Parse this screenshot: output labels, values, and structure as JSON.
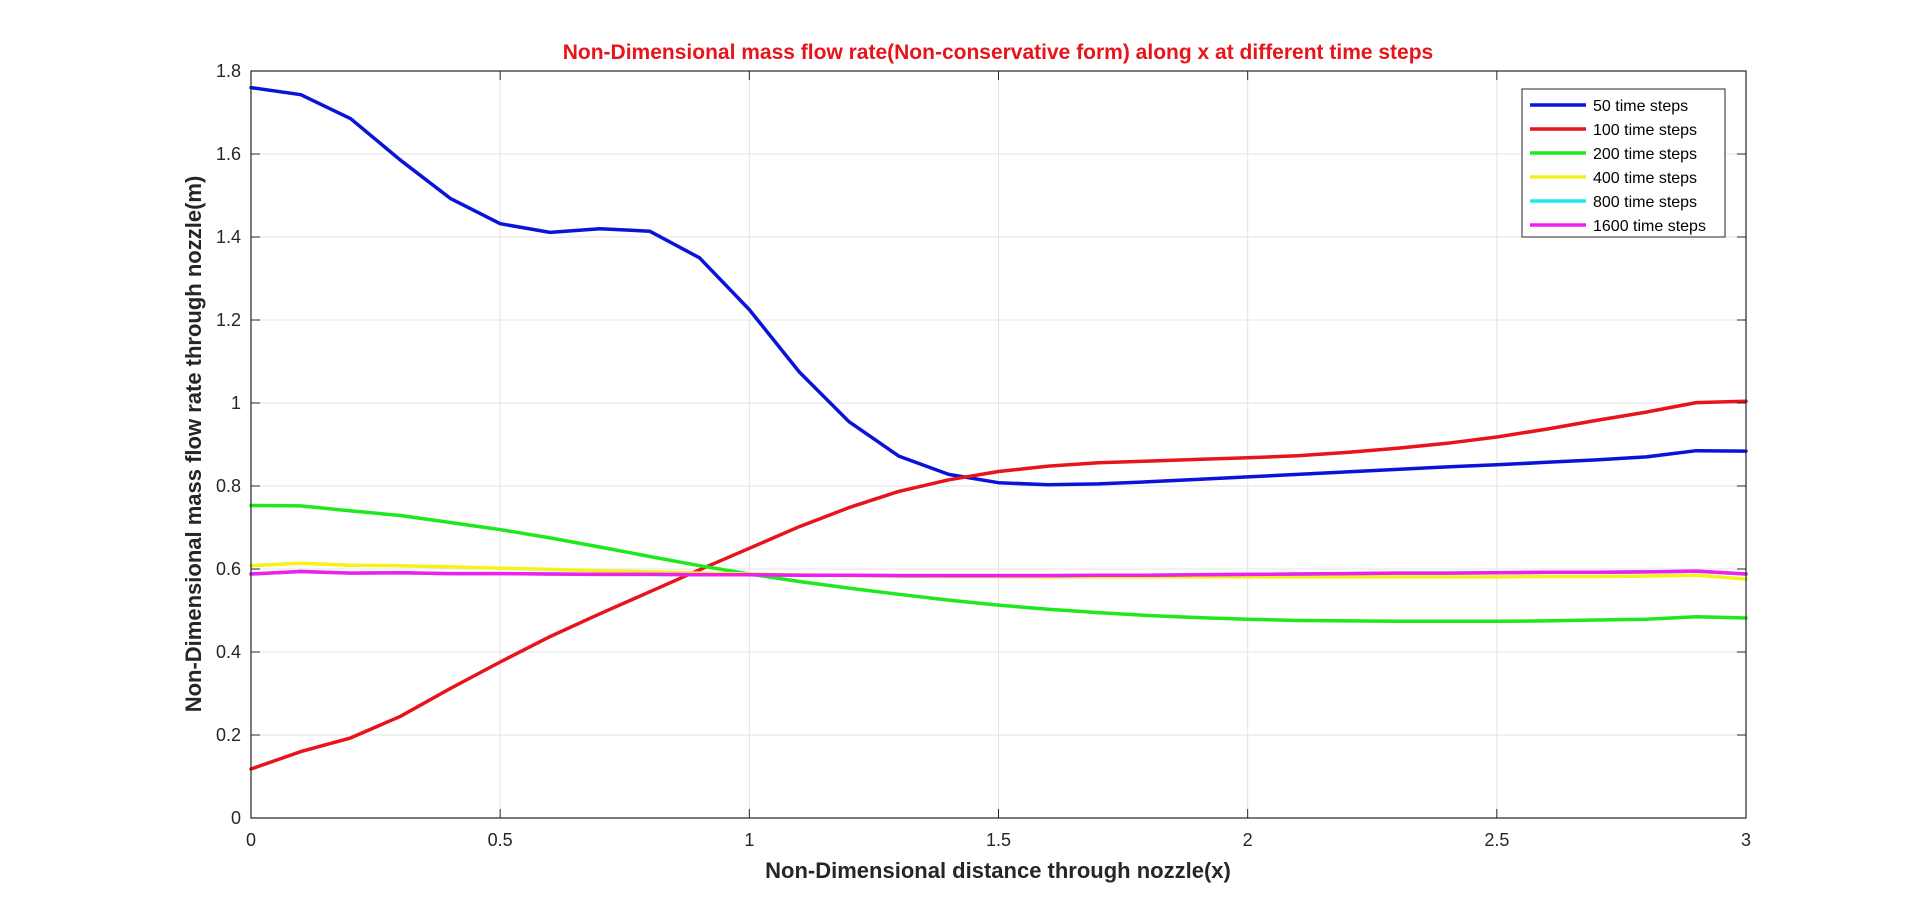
{
  "chart_data": {
    "type": "line",
    "title": "Non-Dimensional mass flow rate(Non-conservative form) along x at different time steps",
    "title_color": "#e8141b",
    "xlabel": "Non-Dimensional distance through nozzle(x)",
    "ylabel": "Non-Dimensional mass flow rate through nozzle(m)",
    "xlim": [
      0,
      3
    ],
    "ylim": [
      0,
      1.8
    ],
    "xticks": [
      0,
      0.5,
      1,
      1.5,
      2,
      2.5,
      3
    ],
    "xtick_labels": [
      "0",
      "0.5",
      "1",
      "1.5",
      "2",
      "2.5",
      "3"
    ],
    "yticks": [
      0,
      0.2,
      0.4,
      0.6,
      0.8,
      1,
      1.2,
      1.4,
      1.6,
      1.8
    ],
    "ytick_labels": [
      "0",
      "0.2",
      "0.4",
      "0.6",
      "0.8",
      "1",
      "1.2",
      "1.4",
      "1.6",
      "1.8"
    ],
    "grid": true,
    "legend_position": "top-right",
    "x": [
      0,
      0.1,
      0.2,
      0.3,
      0.4,
      0.5,
      0.6,
      0.7,
      0.8,
      0.9,
      1.0,
      1.1,
      1.2,
      1.3,
      1.4,
      1.5,
      1.6,
      1.7,
      1.8,
      1.9,
      2.0,
      2.1,
      2.2,
      2.3,
      2.4,
      2.5,
      2.6,
      2.7,
      2.8,
      2.9,
      3.0
    ],
    "series": [
      {
        "name": "50 time steps",
        "color": "#0a14d8",
        "values": [
          1.76,
          1.743,
          1.685,
          1.585,
          1.493,
          1.432,
          1.411,
          1.42,
          1.414,
          1.35,
          1.225,
          1.075,
          0.955,
          0.872,
          0.828,
          0.808,
          0.803,
          0.805,
          0.81,
          0.816,
          0.822,
          0.828,
          0.834,
          0.84,
          0.846,
          0.851,
          0.857,
          0.863,
          0.87,
          0.885,
          0.884
        ]
      },
      {
        "name": "100 time steps",
        "color": "#e8141b",
        "values": [
          0.118,
          0.16,
          0.193,
          0.245,
          0.312,
          0.376,
          0.437,
          0.492,
          0.545,
          0.598,
          0.65,
          0.702,
          0.748,
          0.787,
          0.815,
          0.835,
          0.848,
          0.856,
          0.86,
          0.864,
          0.868,
          0.873,
          0.881,
          0.891,
          0.903,
          0.918,
          0.937,
          0.958,
          0.978,
          1.001,
          1.004
        ]
      },
      {
        "name": "200 time steps",
        "color": "#1ee81e",
        "values": [
          0.753,
          0.752,
          0.74,
          0.729,
          0.712,
          0.695,
          0.675,
          0.653,
          0.63,
          0.608,
          0.588,
          0.57,
          0.554,
          0.539,
          0.525,
          0.513,
          0.503,
          0.495,
          0.488,
          0.483,
          0.479,
          0.476,
          0.475,
          0.474,
          0.474,
          0.474,
          0.475,
          0.477,
          0.479,
          0.485,
          0.482
        ]
      },
      {
        "name": "400 time steps",
        "color": "#f4f21a",
        "values": [
          0.608,
          0.614,
          0.609,
          0.608,
          0.605,
          0.602,
          0.599,
          0.596,
          0.593,
          0.59,
          0.588,
          0.586,
          0.584,
          0.583,
          0.582,
          0.582,
          0.581,
          0.581,
          0.581,
          0.581,
          0.581,
          0.581,
          0.581,
          0.581,
          0.581,
          0.581,
          0.582,
          0.582,
          0.583,
          0.585,
          0.576
        ]
      },
      {
        "name": "800 time steps",
        "color": "#1ee8f0",
        "values": [
          0.588,
          0.594,
          0.59,
          0.591,
          0.589,
          0.589,
          0.588,
          0.587,
          0.587,
          0.586,
          0.586,
          0.585,
          0.585,
          0.584,
          0.584,
          0.584,
          0.584,
          0.585,
          0.585,
          0.586,
          0.587,
          0.588,
          0.589,
          0.59,
          0.59,
          0.591,
          0.592,
          0.592,
          0.593,
          0.595,
          0.588
        ]
      },
      {
        "name": "1600 time steps",
        "color": "#f01ef0",
        "values": [
          0.588,
          0.594,
          0.59,
          0.591,
          0.589,
          0.589,
          0.588,
          0.587,
          0.587,
          0.586,
          0.586,
          0.585,
          0.585,
          0.584,
          0.584,
          0.584,
          0.584,
          0.585,
          0.585,
          0.586,
          0.587,
          0.588,
          0.589,
          0.59,
          0.59,
          0.591,
          0.592,
          0.592,
          0.593,
          0.595,
          0.588
        ]
      }
    ]
  }
}
